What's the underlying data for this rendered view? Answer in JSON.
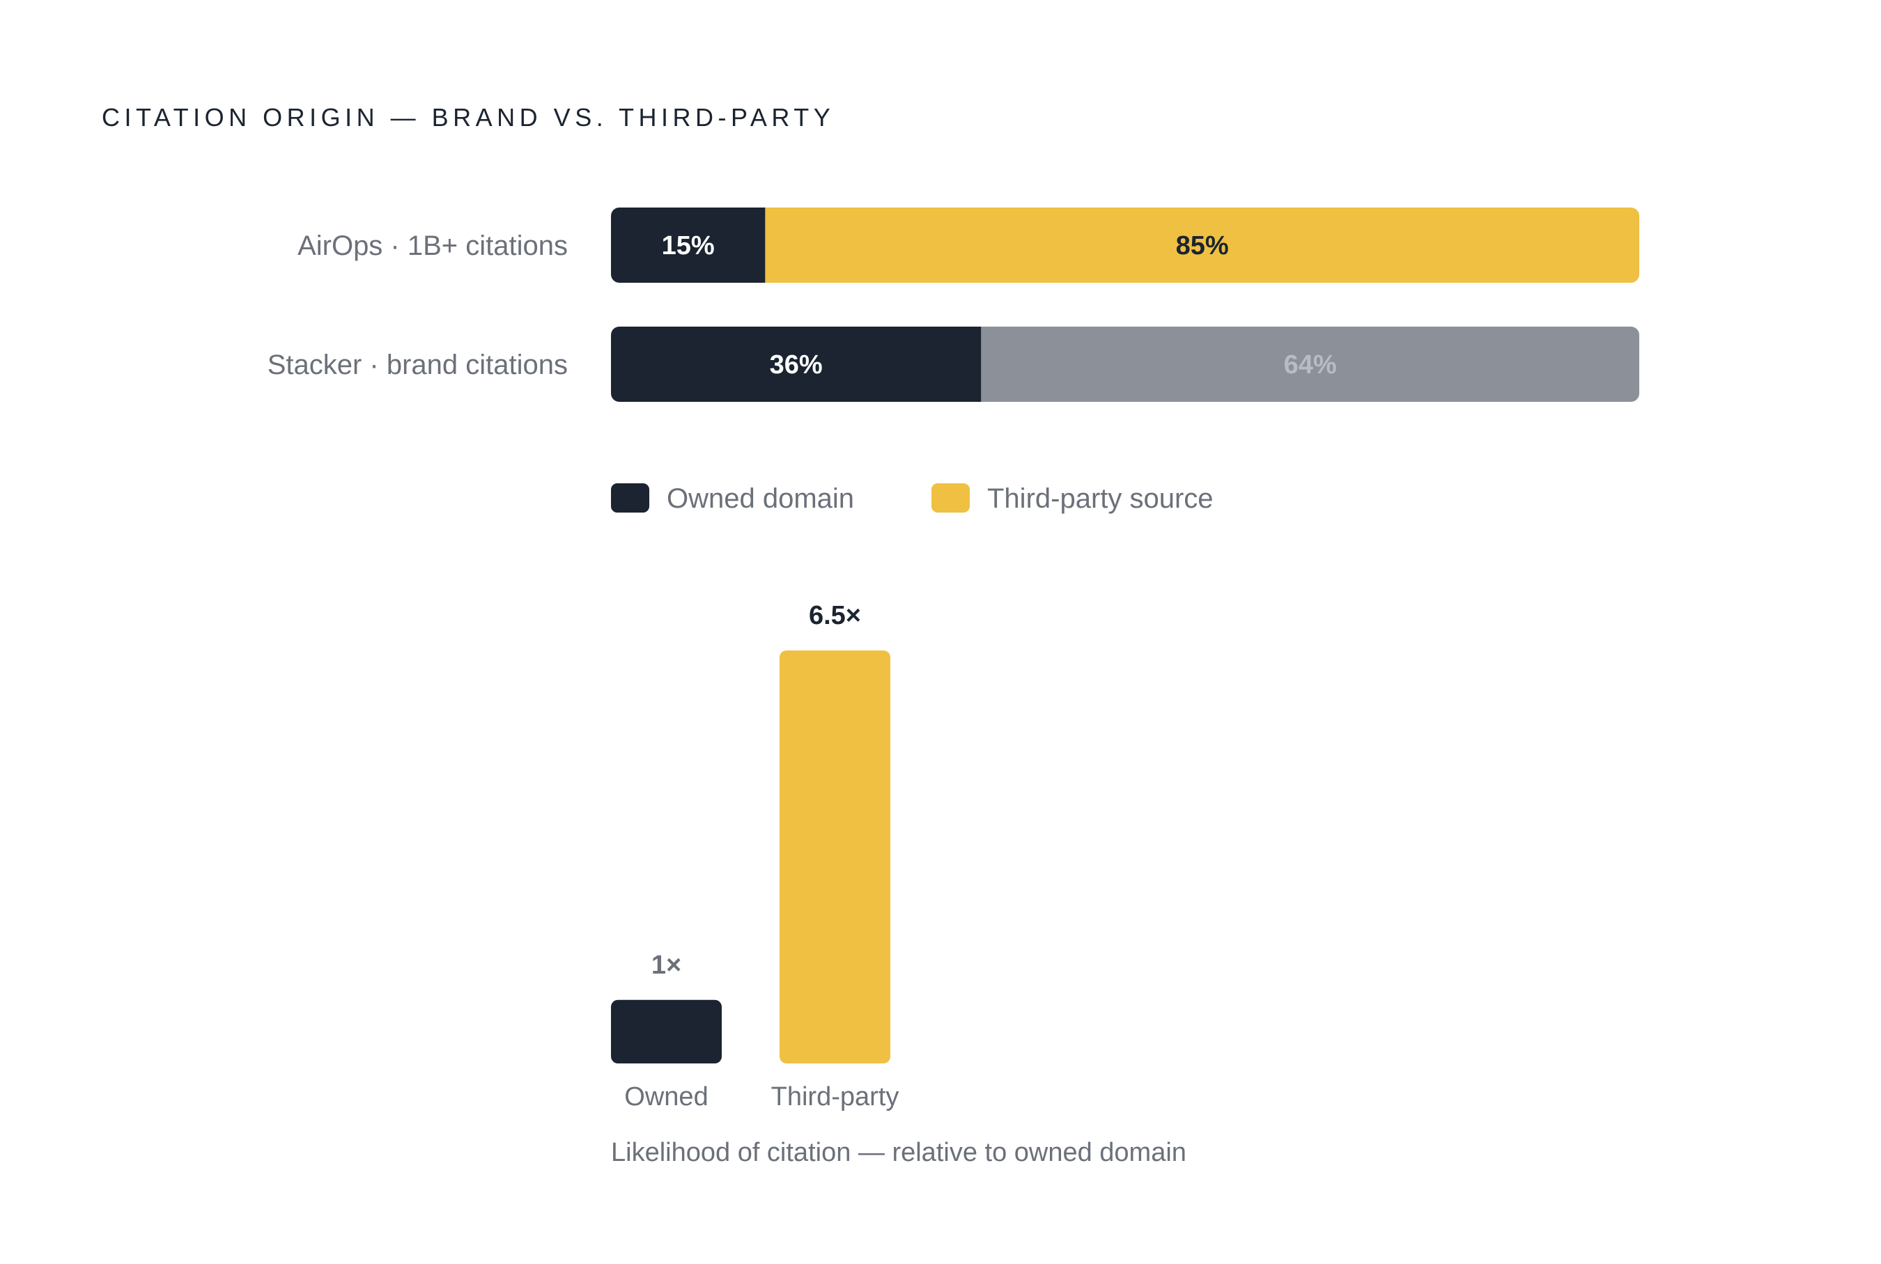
{
  "title": "CITATION ORIGIN — BRAND VS. THIRD-PARTY",
  "colors": {
    "owned": "#1b2430",
    "third_party": "#efc042",
    "stacker_other": "#8c9199",
    "stacker_other_text": "#b9bcc2",
    "text_muted": "#6b7079",
    "text_dark": "#1b2430"
  },
  "chart_data": [
    {
      "type": "bar",
      "orientation": "horizontal",
      "stacked": true,
      "percent": true,
      "categories": [
        "AirOps · 1B+ citations",
        "Stacker · brand citations"
      ],
      "series": [
        {
          "name": "Owned domain",
          "values": [
            15,
            36
          ],
          "labels": [
            "15%",
            "36%"
          ]
        },
        {
          "name": "Third-party source",
          "values": [
            85,
            64
          ],
          "labels": [
            "85%",
            "64%"
          ]
        }
      ],
      "legend": {
        "placement": "bottom-left",
        "items": [
          "Owned domain",
          "Third-party source"
        ]
      }
    },
    {
      "type": "bar",
      "orientation": "vertical",
      "categories": [
        "Owned",
        "Third-party"
      ],
      "values": [
        1,
        6.5
      ],
      "labels": [
        "1×",
        "6.5×"
      ],
      "caption": "Likelihood of citation — relative to owned domain"
    }
  ]
}
